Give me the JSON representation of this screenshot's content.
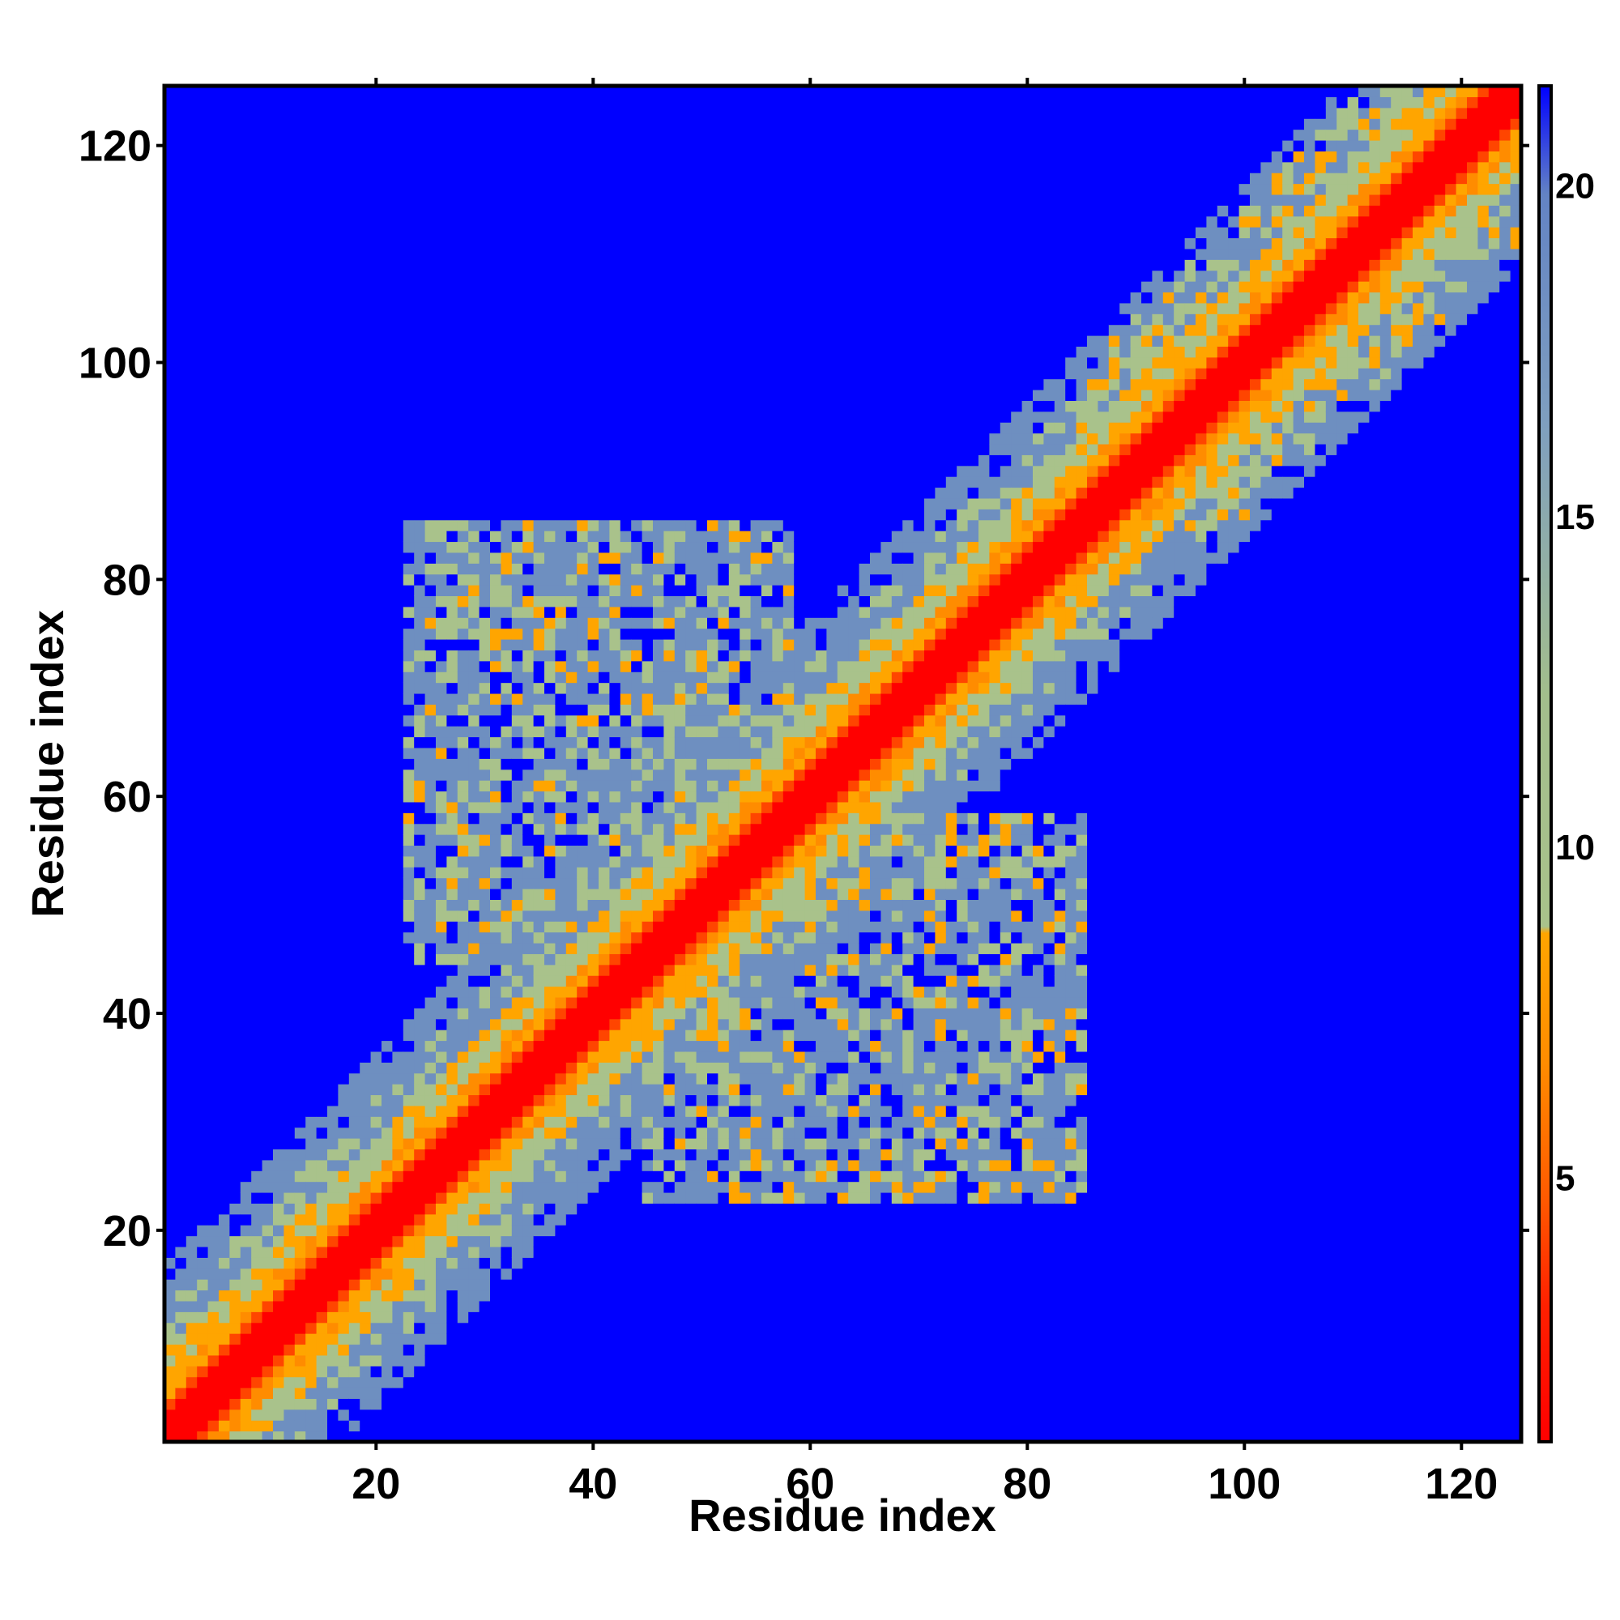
{
  "chart_data": {
    "type": "heatmap",
    "title": "",
    "xlabel": "Residue index",
    "ylabel": "Residue index",
    "n_residues": 125,
    "xlim": [
      1,
      125
    ],
    "ylim": [
      1,
      125
    ],
    "x_ticks": [
      20,
      40,
      60,
      80,
      100,
      120
    ],
    "y_ticks": [
      20,
      40,
      60,
      80,
      100,
      120
    ],
    "colorbar": {
      "range": [
        1,
        21.5
      ],
      "ticks": [
        5,
        10,
        15,
        20
      ],
      "colors": {
        "red": "#ff0000",
        "orange_red": "#ff4500",
        "orange": "#ff8c00",
        "amber": "#ffa500",
        "sage": "#a9c28b",
        "steel_blue": "#6e8fc0",
        "blue": "#0000ff"
      }
    },
    "regions": {
      "diagonal_band": [
        1,
        125
      ],
      "domain_contacts": [
        [
          23,
          85
        ],
        [
          23,
          84
        ]
      ],
      "c_terminal_contacts": [
        [
          85,
          125
        ],
        [
          85,
          125
        ]
      ]
    },
    "grid": false,
    "legend": "colorbar-right"
  }
}
